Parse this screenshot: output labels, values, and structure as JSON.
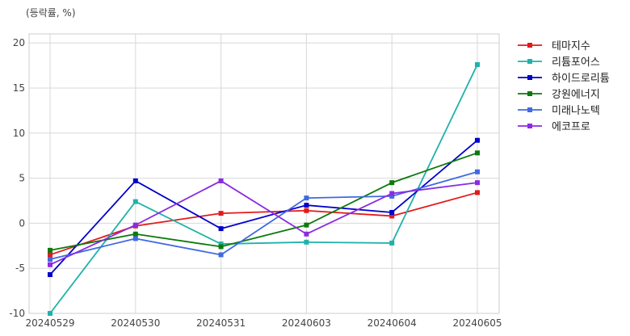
{
  "chart_data": {
    "type": "line",
    "unit_label": "(등락률, %)",
    "title": "",
    "xlabel": "",
    "ylabel": "",
    "categories": [
      "20240529",
      "20240530",
      "20240531",
      "20240603",
      "20240604",
      "20240605"
    ],
    "ylim": [
      -10,
      21
    ],
    "yticks": [
      -10,
      -5,
      0,
      5,
      10,
      15,
      20
    ],
    "ytick_labels": [
      "-10",
      "-5",
      "0",
      "5",
      "10",
      "15",
      "20"
    ],
    "grid": true,
    "legend_position": "outside-top-right",
    "marker": "square",
    "series": [
      {
        "name": "테마지수",
        "color": "#e31a1c",
        "values": [
          -3.5,
          -0.3,
          1.1,
          1.4,
          0.8,
          3.4
        ]
      },
      {
        "name": "리튬포어스",
        "color": "#20b2aa",
        "values": [
          -10.0,
          2.4,
          -2.3,
          -2.1,
          -2.2,
          17.6
        ]
      },
      {
        "name": "하이드로리튬",
        "color": "#0000cd",
        "values": [
          -5.7,
          4.7,
          -0.6,
          2.0,
          1.2,
          9.2
        ]
      },
      {
        "name": "강원에너지",
        "color": "#0b7a0b",
        "values": [
          -3.0,
          -1.2,
          -2.6,
          -0.2,
          4.5,
          7.8
        ]
      },
      {
        "name": "미래나노텍",
        "color": "#4169e1",
        "values": [
          -4.0,
          -1.7,
          -3.5,
          2.8,
          3.0,
          5.7
        ]
      },
      {
        "name": "에코프로",
        "color": "#8a2be2",
        "values": [
          -4.6,
          -0.2,
          4.7,
          -1.2,
          3.3,
          4.5
        ]
      }
    ]
  }
}
